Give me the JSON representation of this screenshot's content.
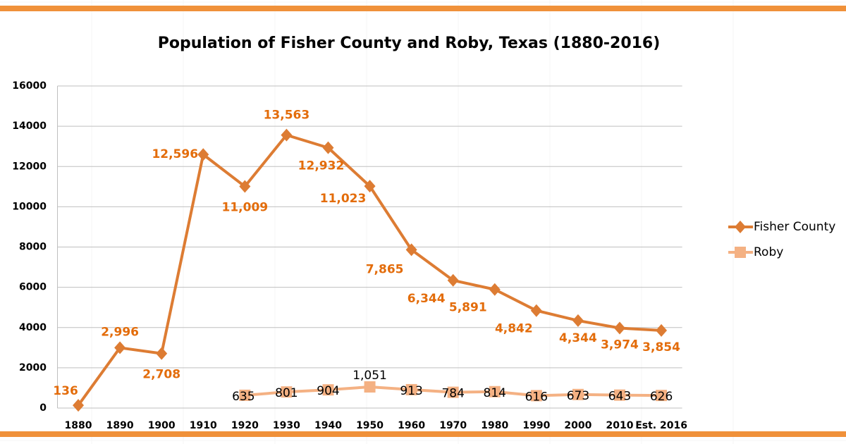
{
  "chart_data": {
    "type": "line",
    "title": "Population of Fisher County and Roby, Texas (1880-2016)",
    "categories": [
      "1880",
      "1890",
      "1900",
      "1910",
      "1920",
      "1930",
      "1940",
      "1950",
      "1960",
      "1970",
      "1980",
      "1990",
      "2000",
      "2010",
      "Est. 2016"
    ],
    "series": [
      {
        "name": "Fisher County",
        "color": "#dd7c33",
        "label_color": "#e36c0a",
        "values": [
          136,
          2996,
          2708,
          12596,
          11009,
          13563,
          12932,
          11023,
          7865,
          6344,
          5891,
          4842,
          4344,
          3974,
          3854
        ],
        "value_labels": [
          "136",
          "2,996",
          "2,708",
          "12,596",
          "11,009",
          "13,563",
          "12,932",
          "11,023",
          "7,865",
          "6,344",
          "5,891",
          "4,842",
          "4,344",
          "3,974",
          "3,854"
        ]
      },
      {
        "name": "Roby",
        "color": "#f4b183",
        "label_color": "#000000",
        "values": [
          null,
          null,
          null,
          null,
          635,
          801,
          904,
          1051,
          913,
          784,
          814,
          616,
          673,
          643,
          626
        ],
        "value_labels": [
          null,
          null,
          null,
          null,
          "635",
          "801",
          "904",
          "1,051",
          "913",
          "784",
          "814",
          "616",
          "673",
          "643",
          "626"
        ]
      }
    ],
    "ylim": [
      0,
      16000
    ],
    "yticks": [
      0,
      2000,
      4000,
      6000,
      8000,
      10000,
      12000,
      14000,
      16000
    ],
    "grid": true,
    "legend": "right"
  }
}
